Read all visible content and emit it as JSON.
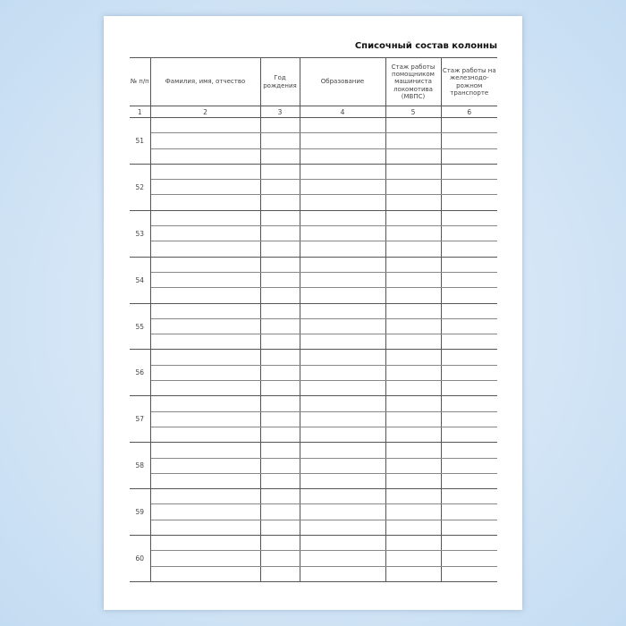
{
  "title": "Списочный состав колонны",
  "headers": [
    "№ п/п",
    "Фамилия, имя, отчество",
    "Год рождения",
    "Образование",
    "Стаж работы помощником машиниста локомотива (МВПС)",
    "Стаж работы на железнодо-рожном транспорте"
  ],
  "column_numbers": [
    "1",
    "2",
    "3",
    "4",
    "5",
    "6"
  ],
  "row_numbers": [
    "51",
    "52",
    "53",
    "54",
    "55",
    "56",
    "57",
    "58",
    "59",
    "60"
  ]
}
